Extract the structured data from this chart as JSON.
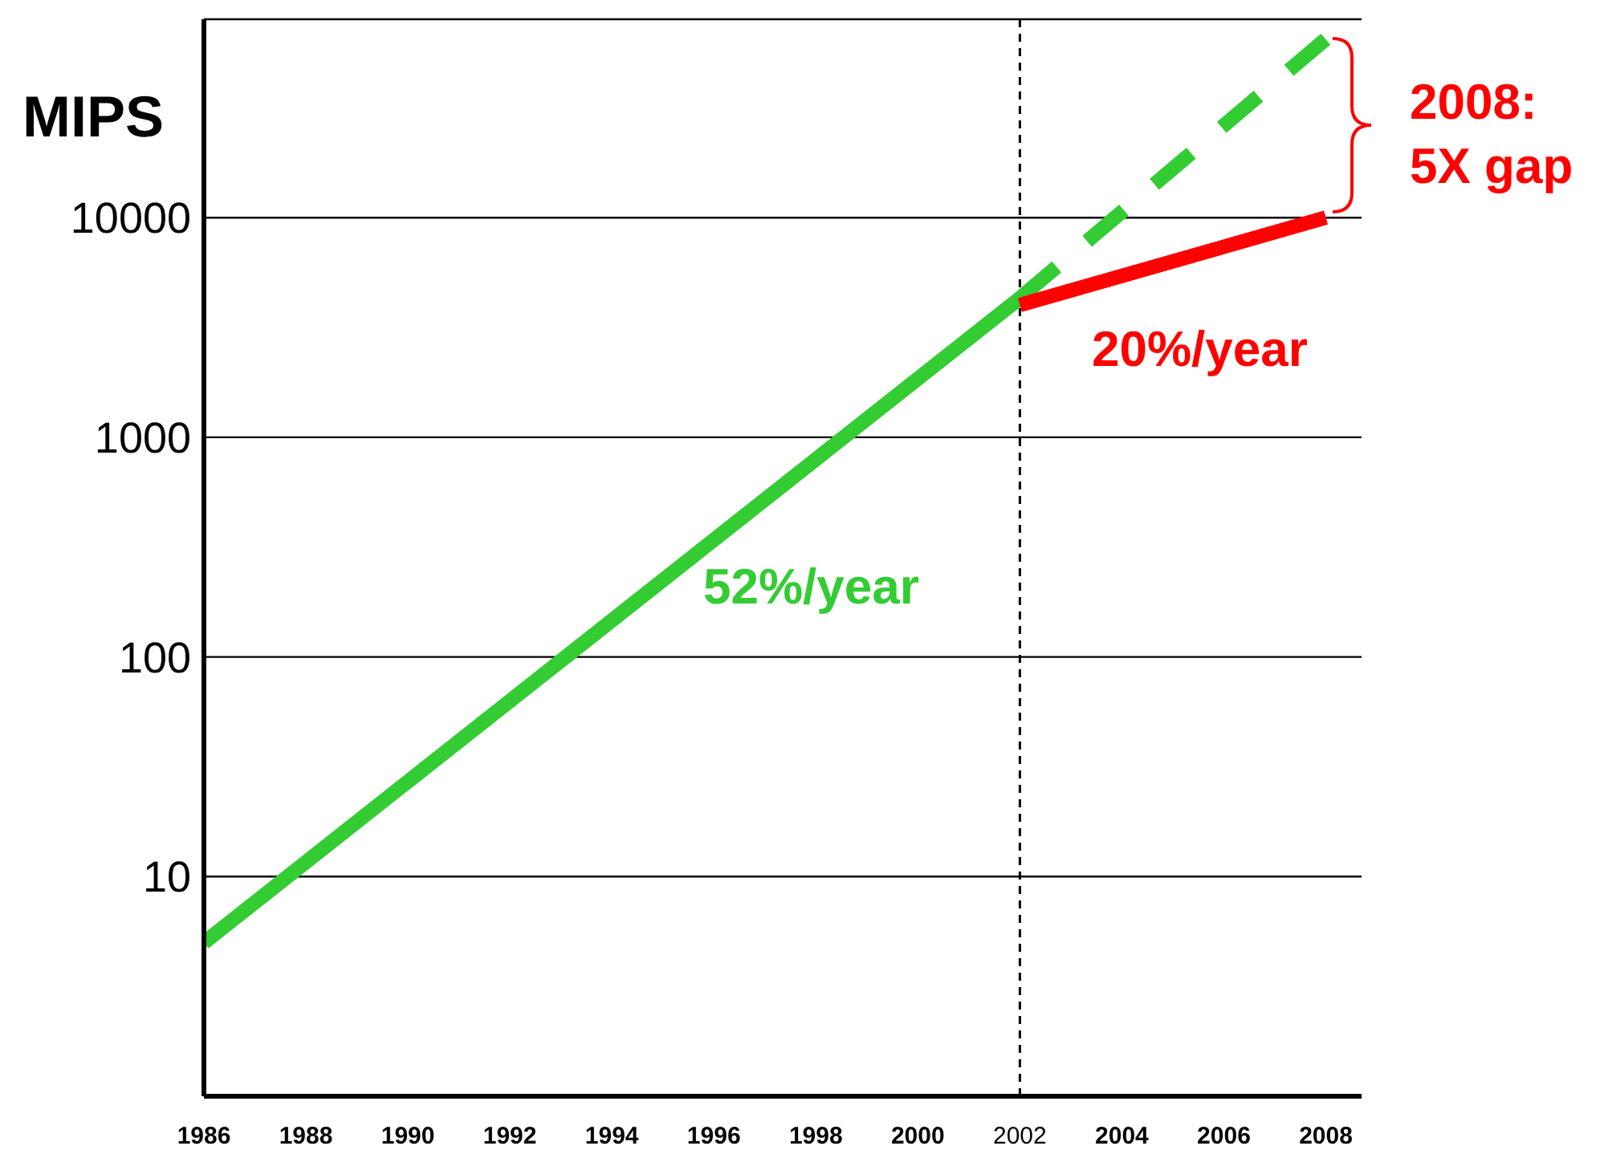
{
  "chart_data": {
    "type": "line",
    "ylabel": "MIPS",
    "log": "y",
    "xlim": [
      1986,
      2008.7
    ],
    "ylim": [
      1,
      80000
    ],
    "xticks": [
      1986,
      1988,
      1990,
      1992,
      1994,
      1996,
      1998,
      2000,
      2002,
      2004,
      2006,
      2008
    ],
    "yticks": [
      10,
      100,
      1000,
      10000
    ],
    "grid": "y",
    "series": [
      {
        "color": "#33cc33",
        "x": [
          1986,
          2002
        ],
        "values": [
          5,
          4300
        ],
        "line_style": "solid"
      },
      {
        "color": "#33cc33",
        "x": [
          2002,
          2008
        ],
        "values": [
          4300,
          65000
        ],
        "line_style": "dashed"
      },
      {
        "color": "#ff0000",
        "x": [
          2002,
          2008
        ],
        "values": [
          4000,
          10000
        ],
        "line_style": "solid"
      }
    ],
    "ref_lines": [
      {
        "axis": "x",
        "value": 2002,
        "line_style": "dashed",
        "color": "#000000"
      }
    ],
    "annotations": [
      "52%/year",
      "20%/year",
      "2008: 5X gap"
    ]
  }
}
